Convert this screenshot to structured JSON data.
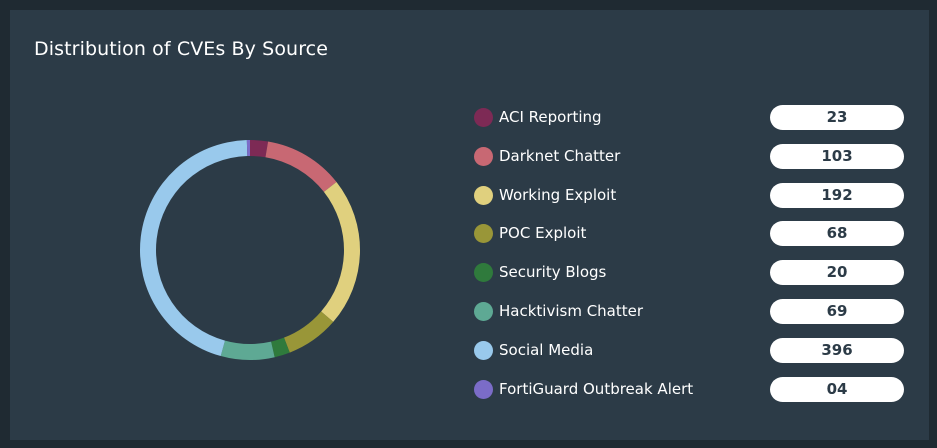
{
  "panel": {
    "title": "Distribution of CVEs By Source"
  },
  "chart_data": {
    "type": "pie",
    "title": "Distribution of CVEs By Source",
    "donut": true,
    "legend_position": "right",
    "categories": [
      "ACI Reporting",
      "Darknet Chatter",
      "Working Exploit",
      "POC Exploit",
      "Security Blogs",
      "Hacktivism Chatter",
      "Social Media",
      "FortiGuard Outbreak Alert"
    ],
    "values": [
      23,
      103,
      192,
      68,
      20,
      69,
      396,
      4
    ],
    "value_labels": [
      "23",
      "103",
      "192",
      "68",
      "20",
      "69",
      "396",
      "04"
    ],
    "colors": [
      "#7d2a55",
      "#c86873",
      "#e0d07e",
      "#999638",
      "#2f7a3c",
      "#5ea994",
      "#99c9ec",
      "#7b6cc8"
    ]
  }
}
